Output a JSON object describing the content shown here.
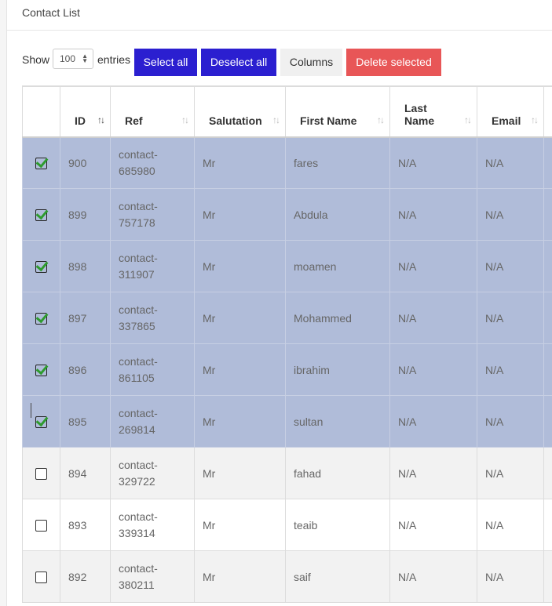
{
  "card": {
    "title": "Contact List"
  },
  "toolbar": {
    "show_label": "Show",
    "length_value": "100",
    "entries_label": "entries",
    "select_all": "Select all",
    "deselect_all": "Deselect all",
    "columns": "Columns",
    "delete_selected": "Delete selected"
  },
  "colors": {
    "primary": "#2b1fd0",
    "danger": "#e85657",
    "selected_row": "#b0bcd9",
    "check": "#2e9b2e"
  },
  "table": {
    "headers": {
      "id": "ID",
      "ref": "Ref",
      "salutation": "Salutation",
      "first_name": "First Name",
      "last_name_1": "Last",
      "last_name_2": "Name",
      "email": "Email"
    },
    "rows": [
      {
        "selected": true,
        "id": "900",
        "ref1": "contact-",
        "ref2": "685980",
        "salutation": "Mr",
        "first_name": "fares",
        "last_name": "N/A",
        "email": "N/A"
      },
      {
        "selected": true,
        "id": "899",
        "ref1": "contact-",
        "ref2": "757178",
        "salutation": "Mr",
        "first_name": "Abdula",
        "last_name": "N/A",
        "email": "N/A"
      },
      {
        "selected": true,
        "id": "898",
        "ref1": "contact-",
        "ref2": "311907",
        "salutation": "Mr",
        "first_name": "moamen",
        "last_name": "N/A",
        "email": "N/A"
      },
      {
        "selected": true,
        "id": "897",
        "ref1": "contact-",
        "ref2": "337865",
        "salutation": "Mr",
        "first_name": "Mohammed",
        "last_name": "N/A",
        "email": "N/A"
      },
      {
        "selected": true,
        "id": "896",
        "ref1": "contact-",
        "ref2": "861105",
        "salutation": "Mr",
        "first_name": "ibrahim",
        "last_name": "N/A",
        "email": "N/A"
      },
      {
        "selected": true,
        "id": "895",
        "ref1": "contact-",
        "ref2": "269814",
        "salutation": "Mr",
        "first_name": "sultan",
        "last_name": "N/A",
        "email": "N/A"
      },
      {
        "selected": false,
        "id": "894",
        "ref1": "contact-",
        "ref2": "329722",
        "salutation": "Mr",
        "first_name": "fahad",
        "last_name": "N/A",
        "email": "N/A"
      },
      {
        "selected": false,
        "id": "893",
        "ref1": "contact-",
        "ref2": "339314",
        "salutation": "Mr",
        "first_name": "teaib",
        "last_name": "N/A",
        "email": "N/A"
      },
      {
        "selected": false,
        "id": "892",
        "ref1": "contact-",
        "ref2": "380211",
        "salutation": "Mr",
        "first_name": "saif",
        "last_name": "N/A",
        "email": "N/A"
      }
    ]
  }
}
